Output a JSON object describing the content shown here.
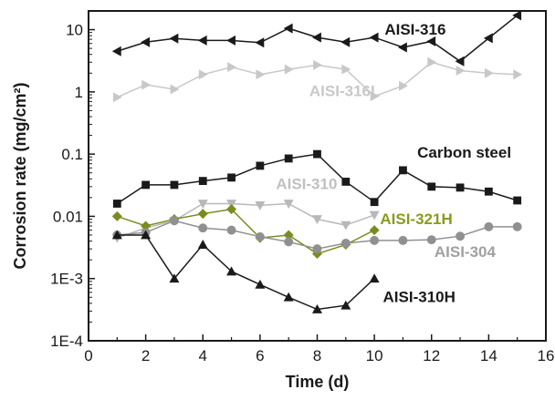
{
  "chart_data": {
    "type": "line",
    "title": "",
    "xlabel": "Time (d)",
    "ylabel": "Corrosion rate (mg/cm²)",
    "yscale": "log",
    "xlim": [
      0,
      16
    ],
    "ylim": [
      0.0001,
      20
    ],
    "grid": false,
    "x_ticks": [
      0,
      2,
      4,
      6,
      8,
      10,
      12,
      14,
      16
    ],
    "x_tick_labels": [
      "0",
      "2",
      "4",
      "6",
      "8",
      "10",
      "12",
      "14",
      "16"
    ],
    "y_ticks": [
      0.0001,
      0.001,
      0.01,
      0.1,
      1,
      10
    ],
    "y_tick_labels": [
      "1E-4",
      "1E-3",
      "0.01",
      "0.1",
      "1",
      "10"
    ],
    "series": [
      {
        "name": "AISI-316",
        "color": "#1a1a1a",
        "marker": "triangle-left",
        "x": [
          1,
          2,
          3,
          4,
          5,
          6,
          7,
          8,
          9,
          10,
          11,
          12,
          13,
          14,
          15
        ],
        "values": [
          4.5,
          6.3,
          7.2,
          6.7,
          6.7,
          6.2,
          10.5,
          7.5,
          6.3,
          7.5,
          5.2,
          6.5,
          3.1,
          7.3,
          17
        ]
      },
      {
        "name": "AISI-316L",
        "color": "#c8c8c8",
        "marker": "triangle-right",
        "x": [
          1,
          2,
          3,
          4,
          5,
          6,
          7,
          8,
          9,
          10,
          11,
          12,
          13,
          14,
          15
        ],
        "values": [
          0.82,
          1.3,
          1.1,
          1.9,
          2.5,
          1.9,
          2.3,
          2.7,
          2.3,
          0.85,
          1.25,
          3.0,
          2.2,
          2.0,
          1.9
        ]
      },
      {
        "name": "Carbon steel",
        "color": "#1a1a1a",
        "marker": "square",
        "x": [
          1,
          2,
          3,
          4,
          5,
          6,
          7,
          8,
          9,
          10,
          11,
          12,
          13,
          14,
          15
        ],
        "values": [
          0.016,
          0.032,
          0.032,
          0.037,
          0.042,
          0.065,
          0.085,
          0.1,
          0.036,
          0.017,
          0.055,
          0.03,
          0.029,
          0.025,
          0.018
        ]
      },
      {
        "name": "AISI-310",
        "color": "#b8b8b8",
        "marker": "triangle-down",
        "x": [
          1,
          2,
          3,
          4,
          5,
          6,
          7,
          8,
          9,
          10
        ],
        "values": [
          0.0045,
          0.0065,
          0.0085,
          0.016,
          0.016,
          0.015,
          0.016,
          0.009,
          0.0072,
          0.0105
        ]
      },
      {
        "name": "AISI-321H",
        "color": "#7a8c1e",
        "marker": "diamond",
        "x": [
          1,
          2,
          3,
          4,
          5,
          6,
          7,
          8,
          9,
          10
        ],
        "values": [
          0.01,
          0.007,
          0.009,
          0.011,
          0.013,
          0.0045,
          0.005,
          0.0025,
          0.0035,
          0.006
        ]
      },
      {
        "name": "AISI-304",
        "color": "#909090",
        "marker": "circle",
        "x": [
          1,
          2,
          3,
          4,
          5,
          6,
          7,
          8,
          9,
          10,
          11,
          12,
          13,
          14,
          15
        ],
        "values": [
          0.005,
          0.0055,
          0.0085,
          0.0065,
          0.006,
          0.0047,
          0.0039,
          0.003,
          0.0037,
          0.0041,
          0.0041,
          0.0042,
          0.0048,
          0.0068,
          0.0068
        ]
      },
      {
        "name": "AISI-310H",
        "color": "#1a1a1a",
        "marker": "triangle-up",
        "x": [
          1,
          2,
          3,
          4,
          5,
          6,
          7,
          8,
          9,
          10
        ],
        "values": [
          0.005,
          0.005,
          0.001,
          0.0035,
          0.0013,
          0.0008,
          0.0005,
          0.00032,
          0.00037,
          0.001
        ]
      }
    ],
    "annotations": [
      {
        "text": "AISI-316",
        "series": "AISI-316",
        "color": "#1a1a1a"
      },
      {
        "text": "AISI-316L",
        "series": "AISI-316L",
        "color": "#c8c8c8"
      },
      {
        "text": "Carbon steel",
        "series": "Carbon steel",
        "color": "#1a1a1a"
      },
      {
        "text": "AISI-310",
        "series": "AISI-310",
        "color": "#c0c0c0"
      },
      {
        "text": "AISI-321H",
        "series": "AISI-321H",
        "color": "#8a9a1e"
      },
      {
        "text": "AISI-304",
        "series": "AISI-304",
        "color": "#a0a0a0"
      },
      {
        "text": "AISI-310H",
        "series": "AISI-310H",
        "color": "#1a1a1a"
      }
    ]
  }
}
